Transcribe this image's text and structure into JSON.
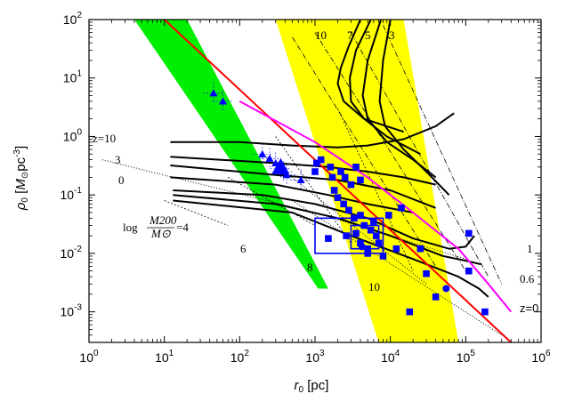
{
  "chart_data": {
    "type": "scatter",
    "title": "",
    "xlabel": "r0 [pc]",
    "ylabel": "ρ0 [M⊙pc⁻³]",
    "x_scale": "log",
    "y_scale": "log",
    "xlim": [
      1,
      1000000
    ],
    "ylim": [
      0.0003,
      100
    ],
    "x_ticks": [
      {
        "value": 1,
        "mant": "10",
        "exp": "0"
      },
      {
        "value": 10,
        "mant": "10",
        "exp": "1"
      },
      {
        "value": 100,
        "mant": "10",
        "exp": "2"
      },
      {
        "value": 1000,
        "mant": "10",
        "exp": "3"
      },
      {
        "value": 10000,
        "mant": "10",
        "exp": "4"
      },
      {
        "value": 100000,
        "mant": "10",
        "exp": "5"
      },
      {
        "value": 1000000,
        "mant": "10",
        "exp": "6"
      }
    ],
    "y_ticks": [
      {
        "value": 0.001,
        "mant": "10",
        "exp": "-3"
      },
      {
        "value": 0.01,
        "mant": "10",
        "exp": "-2"
      },
      {
        "value": 0.1,
        "mant": "10",
        "exp": "-1"
      },
      {
        "value": 1,
        "mant": "10",
        "exp": "0"
      },
      {
        "value": 10,
        "mant": "10",
        "exp": "1"
      },
      {
        "value": 100,
        "mant": "10",
        "exp": "2"
      }
    ],
    "colors": {
      "yellow_band": "#ffff00",
      "green_band": "#00ee00",
      "red_line": "#ff0000",
      "magenta_line": "#ff00ff",
      "data_points": "#0000ff",
      "model_curves": "#000000"
    },
    "yellow_band": [
      [
        300,
        100
      ],
      [
        15000,
        100
      ],
      [
        80000,
        0.0003
      ],
      [
        7000,
        0.0003
      ],
      [
        300,
        100
      ]
    ],
    "green_band": [
      [
        4,
        100
      ],
      [
        20,
        100
      ],
      [
        1500,
        0.0025
      ],
      [
        1100,
        0.0025
      ],
      [
        4,
        100
      ]
    ],
    "red_line": [
      [
        10,
        100
      ],
      [
        400000,
        0.0003
      ]
    ],
    "magenta_line": [
      [
        100,
        4
      ],
      [
        1000,
        0.8
      ],
      [
        5000,
        0.2
      ],
      [
        20000,
        0.05
      ],
      [
        80000,
        0.012
      ],
      [
        200000,
        0.003
      ],
      [
        400000,
        0.001
      ]
    ],
    "redshift_curves": [
      {
        "label": "10",
        "points": [
          [
            4000,
            100
          ],
          [
            2800,
            35
          ],
          [
            2200,
            15
          ],
          [
            2000,
            8
          ],
          [
            2400,
            4
          ],
          [
            4500,
            2
          ],
          [
            15000,
            1.2
          ]
        ]
      },
      {
        "label": "7",
        "points": [
          [
            5500,
            100
          ],
          [
            3500,
            30
          ],
          [
            2900,
            10
          ],
          [
            3000,
            4
          ],
          [
            4500,
            2
          ],
          [
            9000,
            1
          ],
          [
            25000,
            0.5
          ]
        ]
      },
      {
        "label": "5",
        "points": [
          [
            7500,
            100
          ],
          [
            5000,
            20
          ],
          [
            4300,
            5
          ],
          [
            5000,
            2
          ],
          [
            9000,
            0.8
          ],
          [
            20000,
            0.4
          ],
          [
            40000,
            0.2
          ]
        ]
      },
      {
        "label": "3",
        "points": [
          [
            10000,
            100
          ],
          [
            8000,
            20
          ],
          [
            7200,
            4
          ],
          [
            8500,
            1.5
          ],
          [
            15000,
            0.6
          ],
          [
            30000,
            0.25
          ],
          [
            60000,
            0.1
          ]
        ]
      },
      {
        "label": "1",
        "points": [
          [
            13,
            0.12
          ],
          [
            200,
            0.1
          ],
          [
            1000,
            0.07
          ],
          [
            5000,
            0.04
          ],
          [
            20000,
            0.018
          ],
          [
            60000,
            0.012
          ],
          [
            100000,
            0.013
          ],
          [
            130000,
            0.02
          ]
        ]
      },
      {
        "label": "0.6",
        "points": [
          [
            13,
            0.1
          ],
          [
            300,
            0.07
          ],
          [
            2000,
            0.04
          ],
          [
            10000,
            0.02
          ],
          [
            50000,
            0.009
          ],
          [
            100000,
            0.0075
          ],
          [
            160000,
            0.0065
          ]
        ]
      },
      {
        "label": "z=0",
        "points": [
          [
            13,
            0.08
          ],
          [
            500,
            0.05
          ],
          [
            3000,
            0.02
          ],
          [
            20000,
            0.008
          ],
          [
            80000,
            0.004
          ],
          [
            150000,
            0.0025
          ],
          [
            200000,
            0.0018
          ]
        ]
      },
      {
        "label": "z=10",
        "points": [
          [
            12,
            0.8
          ],
          [
            100,
            0.8
          ],
          [
            500,
            0.7
          ],
          [
            2000,
            0.65
          ],
          [
            5000,
            0.7
          ],
          [
            15000,
            0.9
          ],
          [
            40000,
            1.5
          ],
          [
            70000,
            2.5
          ]
        ]
      },
      {
        "label": "",
        "points": [
          [
            12,
            0.45
          ],
          [
            300,
            0.35
          ],
          [
            1500,
            0.3
          ],
          [
            5000,
            0.25
          ],
          [
            15000,
            0.2
          ],
          [
            40000,
            0.15
          ]
        ]
      },
      {
        "label": "3 ",
        "points": [
          [
            12,
            0.32
          ],
          [
            300,
            0.22
          ],
          [
            2000,
            0.18
          ],
          [
            10000,
            0.12
          ],
          [
            40000,
            0.06
          ]
        ]
      },
      {
        "label": "0 ",
        "points": [
          [
            12,
            0.2
          ],
          [
            300,
            0.15
          ],
          [
            1500,
            0.1
          ],
          [
            5000,
            0.07
          ],
          [
            20000,
            0.05
          ]
        ]
      }
    ],
    "mass_lines": [
      {
        "label": "log M200/M⊙ =4",
        "points": [
          [
            10,
            0.08
          ],
          [
            70,
            0.03
          ]
        ]
      },
      {
        "label": "6",
        "points": [
          [
            70,
            0.2
          ],
          [
            1000,
            0.03
          ]
        ]
      },
      {
        "label": "8",
        "points": [
          [
            300,
            1
          ],
          [
            3000,
            0.015
          ]
        ]
      },
      {
        "label": "10",
        "points": [
          [
            2000,
            3
          ],
          [
            20000,
            0.005
          ]
        ]
      }
    ],
    "dotted_lines": [
      [
        [
          1.5,
          0.4
        ],
        [
          1000,
          0.05
        ],
        [
          100000,
          0.008
        ]
      ],
      [
        [
          200,
          0.5
        ],
        [
          30000,
          0.003
        ]
      ],
      [
        [
          500,
          0.08
        ],
        [
          300000,
          0.0004
        ]
      ]
    ],
    "dashdot_lines": [
      [
        [
          500,
          50
        ],
        [
          40000,
          0.006
        ]
      ],
      [
        [
          1000,
          60
        ],
        [
          100000,
          0.005
        ]
      ],
      [
        [
          3000,
          60
        ],
        [
          200000,
          0.004
        ]
      ],
      [
        [
          8000,
          80
        ],
        [
          300000,
          0.003
        ]
      ]
    ],
    "triangles": [
      {
        "x": 45,
        "y": 5.5
      },
      {
        "x": 60,
        "y": 4
      },
      {
        "x": 300,
        "y": 0.35
      },
      {
        "x": 350,
        "y": 0.28
      },
      {
        "x": 380,
        "y": 0.25
      },
      {
        "x": 420,
        "y": 0.22
      },
      {
        "x": 250,
        "y": 0.42
      },
      {
        "x": 650,
        "y": 0.18
      },
      {
        "x": 200,
        "y": 0.5
      }
    ],
    "big_triangle": {
      "x": 350,
      "y": 0.3
    },
    "squares": [
      {
        "x": 1000,
        "y": 0.25
      },
      {
        "x": 1050,
        "y": 0.35
      },
      {
        "x": 1200,
        "y": 0.4
      },
      {
        "x": 1600,
        "y": 0.3
      },
      {
        "x": 1700,
        "y": 0.2
      },
      {
        "x": 2200,
        "y": 0.25
      },
      {
        "x": 2500,
        "y": 0.2
      },
      {
        "x": 3000,
        "y": 0.15
      },
      {
        "x": 3500,
        "y": 0.3
      },
      {
        "x": 4000,
        "y": 0.18
      },
      {
        "x": 1800,
        "y": 0.12
      },
      {
        "x": 2000,
        "y": 0.09
      },
      {
        "x": 2400,
        "y": 0.07
      },
      {
        "x": 2800,
        "y": 0.055
      },
      {
        "x": 3300,
        "y": 0.04
      },
      {
        "x": 4000,
        "y": 0.045
      },
      {
        "x": 4500,
        "y": 0.03
      },
      {
        "x": 5500,
        "y": 0.025
      },
      {
        "x": 6500,
        "y": 0.02
      },
      {
        "x": 7000,
        "y": 0.015
      },
      {
        "x": 5000,
        "y": 0.012
      },
      {
        "x": 4000,
        "y": 0.015
      },
      {
        "x": 2600,
        "y": 0.02
      },
      {
        "x": 3500,
        "y": 0.022
      },
      {
        "x": 8000,
        "y": 0.009
      },
      {
        "x": 12000,
        "y": 0.012
      },
      {
        "x": 14000,
        "y": 0.06
      },
      {
        "x": 25000,
        "y": 0.012
      },
      {
        "x": 30000,
        "y": 0.0045
      },
      {
        "x": 110000,
        "y": 0.022
      },
      {
        "x": 110000,
        "y": 0.005
      },
      {
        "x": 180000,
        "y": 0.001
      },
      {
        "x": 18000,
        "y": 0.001
      },
      {
        "x": 40000,
        "y": 0.0018
      },
      {
        "x": 1500,
        "y": 0.018
      },
      {
        "x": 9500,
        "y": 0.045
      },
      {
        "x": 6000,
        "y": 0.035
      },
      {
        "x": 5000,
        "y": 0.01
      }
    ],
    "circles": [
      {
        "x": 55000,
        "y": 0.0025
      },
      {
        "x": 4200,
        "y": 0.013
      }
    ],
    "boxes": [
      {
        "x1": 1000,
        "x2": 8000,
        "y1": 0.01,
        "y2": 0.04
      },
      {
        "x1": 3000,
        "x2": 7000,
        "y1": 0.012,
        "y2": 0.03
      }
    ],
    "annotations": {
      "z10": "z=10",
      "three": "3",
      "zero": "0",
      "mass4_prefix": "log",
      "mass4_num": "M200",
      "mass4_den": "M⊙",
      "mass4_suffix": "=4",
      "m6": "6",
      "m8": "8",
      "m10": "10",
      "c1": "1",
      "c06": "0.6",
      "cz0": "z=0",
      "top10": "10",
      "top7": "7",
      "top5": "5",
      "top3": "3"
    }
  }
}
